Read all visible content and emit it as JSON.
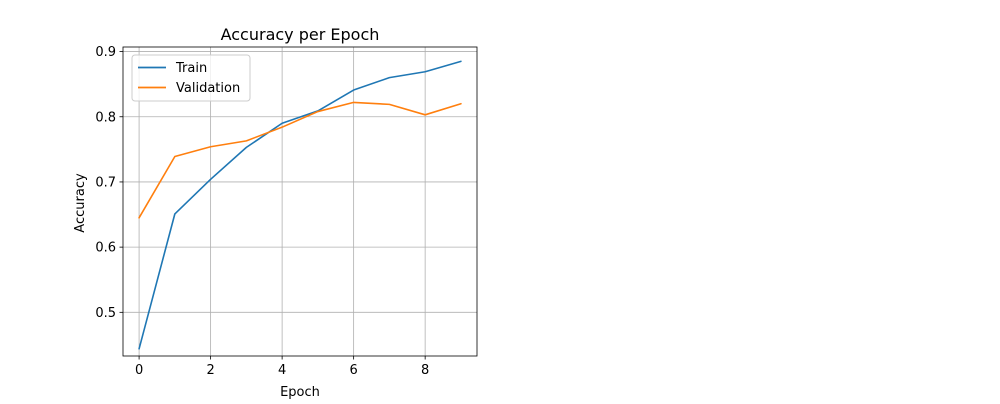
{
  "chart_data": {
    "type": "line",
    "title": "Accuracy per Epoch",
    "xlabel": "Epoch",
    "ylabel": "Accuracy",
    "x": [
      0,
      1,
      2,
      3,
      4,
      5,
      6,
      7,
      8,
      9
    ],
    "xlim": [
      -0.45,
      9.45
    ],
    "ylim": [
      0.433,
      0.907
    ],
    "xticks": [
      0,
      2,
      4,
      6,
      8
    ],
    "yticks": [
      0.5,
      0.6,
      0.7,
      0.8,
      0.9
    ],
    "grid": true,
    "legend_position": "top-left",
    "series": [
      {
        "name": "Train",
        "color": "#1f77b4",
        "values": [
          0.444,
          0.651,
          0.704,
          0.753,
          0.79,
          0.809,
          0.841,
          0.86,
          0.869,
          0.885
        ]
      },
      {
        "name": "Validation",
        "color": "#ff7f0e",
        "values": [
          0.645,
          0.739,
          0.754,
          0.763,
          0.784,
          0.808,
          0.822,
          0.819,
          0.803,
          0.82
        ]
      }
    ]
  }
}
